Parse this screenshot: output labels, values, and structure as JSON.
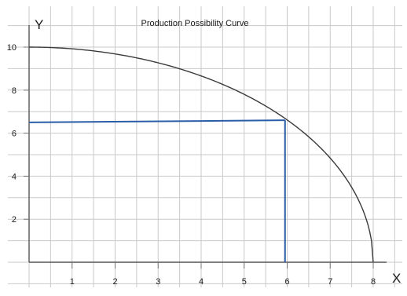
{
  "chart_data": {
    "type": "line",
    "title": "Production Possibility Curve",
    "xlabel": "X",
    "ylabel": "Y",
    "xlim": [
      0,
      8
    ],
    "ylim": [
      0,
      10
    ],
    "grid": true,
    "x_ticks": [
      1,
      2,
      3,
      4,
      5,
      6,
      7,
      8
    ],
    "y_ticks": [
      2,
      4,
      6,
      8,
      10
    ],
    "x_tick_labels": [
      "1",
      "2",
      "3",
      "4",
      "5",
      "6",
      "7",
      "8"
    ],
    "y_tick_labels": [
      "2",
      "4",
      "6",
      "8",
      "10"
    ],
    "series": [
      {
        "type": "curve",
        "color": "#3a3a3a",
        "x": [
          0,
          1,
          2,
          3,
          4,
          5,
          6,
          7,
          7.5,
          8
        ],
        "y": [
          10,
          9.92,
          9.68,
          9.27,
          8.66,
          7.81,
          6.61,
          4.84,
          3.48,
          0
        ]
      },
      {
        "type": "guide",
        "color": "#2a5da8",
        "x": [
          0,
          5.95
        ],
        "y": [
          6.5,
          6.6
        ]
      },
      {
        "type": "guide",
        "color": "#2a5da8",
        "x": [
          5.95,
          5.95
        ],
        "y": [
          6.6,
          0
        ]
      }
    ]
  }
}
